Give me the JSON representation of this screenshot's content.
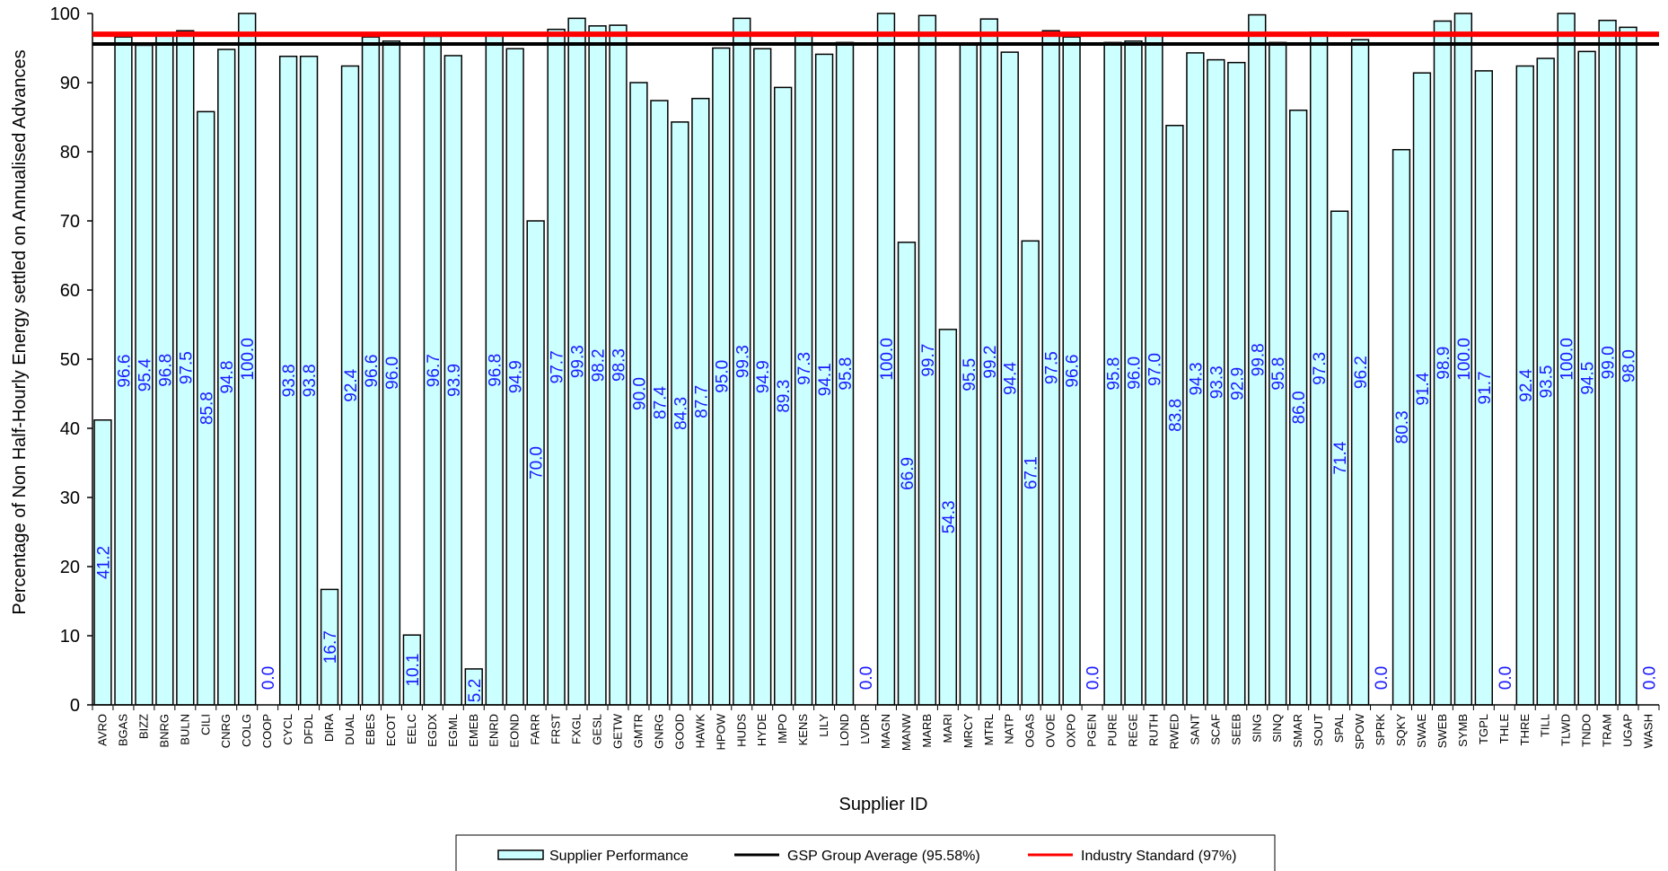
{
  "chart_data": {
    "type": "bar",
    "xlabel": "Supplier ID",
    "ylabel": "Percentage of Non Half-Hourly Energy settled on Annualised Advances",
    "ylim": [
      0,
      100
    ],
    "yticks": [
      0,
      10,
      20,
      30,
      40,
      50,
      60,
      70,
      80,
      90,
      100
    ],
    "grid": false,
    "legend_position": "bottom",
    "categories": [
      "AVRO",
      "BGAS",
      "BIZZ",
      "BNRG",
      "BULN",
      "CILI",
      "CNRG",
      "COLG",
      "COOP",
      "CYCL",
      "DFDL",
      "DIRA",
      "DUAL",
      "EBES",
      "ECOT",
      "EELC",
      "EGDX",
      "EGML",
      "EMEB",
      "ENRD",
      "EOND",
      "FARR",
      "FRST",
      "FXGL",
      "GESL",
      "GETW",
      "GMTR",
      "GNRG",
      "GOOD",
      "HAWK",
      "HPOW",
      "HUDS",
      "HYDE",
      "IMPO",
      "KENS",
      "LILY",
      "LOND",
      "LVDR",
      "MAGN",
      "MANW",
      "MARB",
      "MARI",
      "MRCY",
      "MTRL",
      "NATP",
      "OGAS",
      "OVOE",
      "OXPO",
      "PGEN",
      "PURE",
      "REGE",
      "RUTH",
      "RWED",
      "SANT",
      "SCAF",
      "SEEB",
      "SING",
      "SINQ",
      "SMAR",
      "SOUT",
      "SPAL",
      "SPOW",
      "SPRK",
      "SQKY",
      "SWAE",
      "SWEB",
      "SYMB",
      "TGPL",
      "THLE",
      "THRE",
      "TILL",
      "TLWD",
      "TNDO",
      "TRAM",
      "UGAP",
      "WASH"
    ],
    "series": [
      {
        "name": "Supplier Performance",
        "values": [
          41.2,
          96.6,
          95.4,
          96.8,
          97.5,
          85.8,
          94.8,
          100.0,
          0.0,
          93.8,
          93.8,
          16.7,
          92.4,
          96.6,
          96.0,
          10.1,
          96.7,
          93.9,
          5.2,
          96.8,
          94.9,
          70.0,
          97.7,
          99.3,
          98.2,
          98.3,
          90.0,
          87.4,
          84.3,
          87.7,
          95.0,
          99.3,
          94.9,
          89.3,
          97.3,
          94.1,
          95.8,
          0.0,
          100.0,
          66.9,
          99.7,
          54.3,
          95.5,
          99.2,
          94.4,
          67.1,
          97.5,
          96.6,
          0.0,
          95.8,
          96.0,
          97.0,
          83.8,
          94.3,
          93.3,
          92.9,
          99.8,
          95.8,
          86.0,
          97.3,
          71.4,
          96.2,
          0.0,
          80.3,
          91.4,
          98.9,
          100.0,
          91.7,
          0.0,
          92.4,
          93.5,
          100.0,
          94.5,
          99.0,
          98.0,
          0.0
        ],
        "labels": [
          "41.2",
          "96.6",
          "95.4",
          "96.8",
          "97.5",
          "85.8",
          "94.8",
          "100.0",
          "0.0",
          "93.8",
          "93.8",
          "16.7",
          "92.4",
          "96.6",
          "96.0",
          "10.1",
          "96.7",
          "93.9",
          "5.2",
          "96.8",
          "94.9",
          "70.0",
          "97.7",
          "99.3",
          "98.2",
          "98.3",
          "90.0",
          "87.4",
          "84.3",
          "87.7",
          "95.0",
          "99.3",
          "94.9",
          "89.3",
          "97.3",
          "94.1",
          "95.8",
          "0.0",
          "100.0",
          "66.9",
          "99.7",
          "54.3",
          "95.5",
          "99.2",
          "94.4",
          "67.1",
          "97.5",
          "96.6",
          "0.0",
          "95.8",
          "96.0",
          "97.0",
          "83.8",
          "94.3",
          "93.3",
          "92.9",
          "99.8",
          "95.8",
          "86.0",
          "97.3",
          "71.4",
          "96.2",
          "0.0",
          "80.3",
          "91.4",
          "98.9",
          "100.0",
          "91.7",
          "0.0",
          "92.4",
          "93.5",
          "100.0",
          "94.5",
          "99.0",
          "98.0",
          "0.0"
        ],
        "fill": "#ccffff",
        "stroke": "#000000",
        "label_color": "#1a1aff"
      }
    ],
    "reference_lines": [
      {
        "name": "GSP Group Average (95.58%)",
        "value": 95.58,
        "color": "#000000"
      },
      {
        "name": "Industry Standard (97%)",
        "value": 97,
        "color": "#ff0000"
      }
    ]
  }
}
